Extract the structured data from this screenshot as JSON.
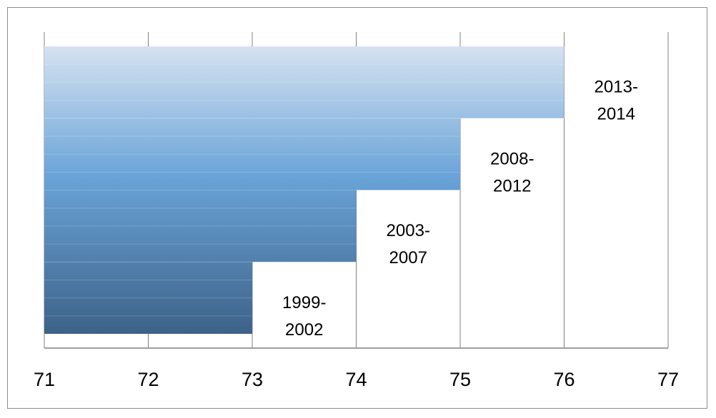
{
  "chart_data": {
    "type": "bar",
    "orientation": "horizontal",
    "stacked": "overlapping",
    "title": "",
    "xlabel": "",
    "ylabel": "",
    "xlim": [
      71,
      77
    ],
    "x_ticks": [
      "71",
      "72",
      "73",
      "74",
      "75",
      "76",
      "77"
    ],
    "grid": true,
    "legend": "none",
    "categories": [
      "1999-2002",
      "2003-2007",
      "2008-2012",
      "2013-2014"
    ],
    "label_lines": [
      [
        "1999-",
        "2002"
      ],
      [
        "2003-",
        "2007"
      ],
      [
        "2008-",
        "2012"
      ],
      [
        "2013-",
        "2014"
      ]
    ],
    "values": [
      73,
      74,
      75,
      76
    ],
    "colors": {
      "gradient_top": "#d6e2f1",
      "gradient_mid": "#6aa4d8",
      "gradient_bottom": "#3d6289",
      "gridline": "#808080",
      "axis": "#808080"
    }
  }
}
